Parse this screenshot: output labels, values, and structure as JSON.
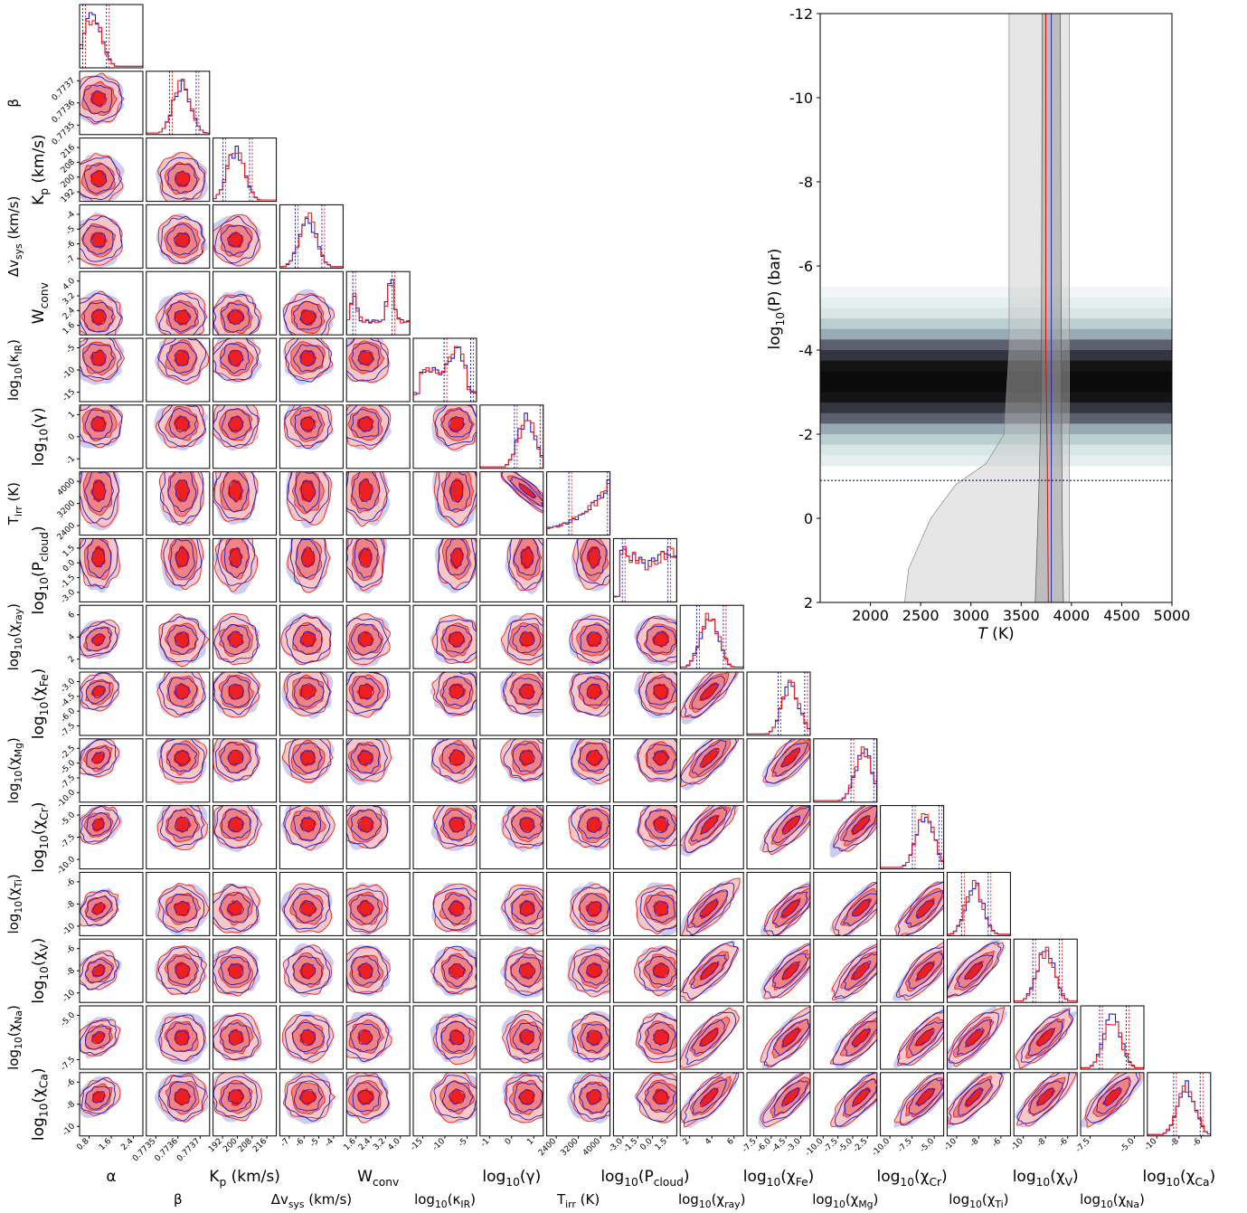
{
  "chart_data": [
    {
      "type": "corner",
      "series": [
        {
          "name": "",
          "color": "#1c1cc8"
        },
        {
          "name": "",
          "color": "#ee2222"
        }
      ],
      "contour_fill_colors": [
        "#f8c8c8",
        "#f08484",
        "#ee1f1f"
      ],
      "parameters": [
        {
          "label": "α",
          "ticks": [
            "0.8",
            "1.6",
            "2.4"
          ],
          "range": [
            0.6,
            2.8
          ],
          "mode": 1.05
        },
        {
          "label": "β",
          "ticks": [
            "0.7735",
            "0.7736",
            "0.7737"
          ],
          "range": [
            0.77345,
            0.77375
          ],
          "mode": 0.77362
        },
        {
          "label": "K_p (km/s)",
          "ticks": [
            "192",
            "200",
            "208",
            "216"
          ],
          "range": [
            190,
            218
          ],
          "mode": 200
        },
        {
          "label": "Δv_sys (km/s)",
          "ticks": [
            "-7",
            "-6",
            "-5",
            "-4"
          ],
          "range": [
            -7.2,
            -3.6
          ],
          "mode": -5.6
        },
        {
          "label": "W_conv",
          "ticks": [
            "1.6",
            "2.4",
            "3.2",
            "4.0"
          ],
          "range": [
            1.0,
            4.4
          ],
          "mode": 1.6
        },
        {
          "label": "log10(κ_IR)",
          "ticks": [
            "-15",
            "-10",
            "-5"
          ],
          "range": [
            -18,
            -2
          ],
          "mode": -7
        },
        {
          "label": "log10(γ)",
          "ticks": [
            "-1",
            "0",
            "1"
          ],
          "range": [
            -2.2,
            1.7
          ],
          "mode": 0.7
        },
        {
          "label": "T_irr (K)",
          "ticks": [
            "2400",
            "3200",
            "4000"
          ],
          "range": [
            2000,
            4500
          ],
          "mode": 4400
        },
        {
          "label": "log10(P_cloud)",
          "ticks": [
            "-3.0",
            "-1.5",
            "0.0",
            "1.5"
          ],
          "range": [
            -4,
            2
          ],
          "mode": 0.5
        },
        {
          "label": "log10(χ_ray)",
          "ticks": [
            "2",
            "4",
            "6"
          ],
          "range": [
            0.5,
            7
          ],
          "mode": 3.5
        },
        {
          "label": "log10(χ_Fe)",
          "ticks": [
            "-7.5",
            "-6.0",
            "-4.5",
            "-3.0"
          ],
          "range": [
            -8.5,
            -2
          ],
          "mode": -4
        },
        {
          "label": "log10(χ_Mg)",
          "ticks": [
            "-10.0",
            "-7.5",
            "-5.0",
            "-2.5"
          ],
          "range": [
            -11,
            -1.5
          ],
          "mode": -3.5
        },
        {
          "label": "log10(χ_Cr)",
          "ticks": [
            "-10.0",
            "-7.5",
            "-5.0"
          ],
          "range": [
            -12,
            -3.5
          ],
          "mode": -6
        },
        {
          "label": "log10(χ_Ti)",
          "ticks": [
            "-10",
            "-8",
            "-6"
          ],
          "range": [
            -12,
            -5
          ],
          "mode": -9
        },
        {
          "label": "log10(χ_V)",
          "ticks": [
            "-10",
            "-8",
            "-6"
          ],
          "range": [
            -11.5,
            -4.5
          ],
          "mode": -8
        },
        {
          "label": "log10(χ_Na)",
          "ticks": [
            "-7.5",
            "-5.0"
          ],
          "range": [
            -9.5,
            -3.5
          ],
          "mode": -6.5
        },
        {
          "label": "log10(χ_Ca)",
          "ticks": [
            "-10",
            "-8",
            "-6"
          ],
          "range": [
            -11.5,
            -5
          ],
          "mode": -7.5
        }
      ]
    },
    {
      "type": "line",
      "xlabel": "T (K)",
      "ylabel": "log10(P) (bar)",
      "xlim": [
        1500,
        5000
      ],
      "ylim": [
        2,
        -12
      ],
      "xticks": [
        "2000",
        "2500",
        "3000",
        "3500",
        "4000",
        "4500",
        "5000"
      ],
      "yticks": [
        "-12",
        "-10",
        "-8",
        "-6",
        "-4",
        "-2",
        "0",
        "2"
      ],
      "contribution_band_center_logP": -3.2,
      "cloud_deck_logP": -0.9,
      "outer_band": {
        "left": [
          [
            3380,
            -12
          ],
          [
            3380,
            -4
          ],
          [
            3330,
            -2
          ],
          [
            3150,
            -1.3
          ],
          [
            2850,
            -0.8
          ],
          [
            2600,
            0
          ],
          [
            2380,
            1.2
          ],
          [
            2340,
            2
          ]
        ],
        "right": [
          [
            3980,
            -12
          ],
          [
            3980,
            2
          ]
        ]
      },
      "inner_band": {
        "left": [
          [
            3710,
            -12
          ],
          [
            3700,
            -3
          ],
          [
            3680,
            -1
          ],
          [
            3660,
            0.5
          ],
          [
            3640,
            2
          ]
        ],
        "right": [
          [
            3890,
            -12
          ],
          [
            3900,
            -3
          ],
          [
            3910,
            0.5
          ],
          [
            3920,
            2
          ]
        ]
      },
      "median_red": [
        [
          3745,
          -12
        ],
        [
          3745,
          -4
        ],
        [
          3760,
          -1.3
        ],
        [
          3770,
          2
        ]
      ],
      "median_blue": [
        [
          3800,
          -12
        ],
        [
          3800,
          2
        ]
      ]
    }
  ]
}
